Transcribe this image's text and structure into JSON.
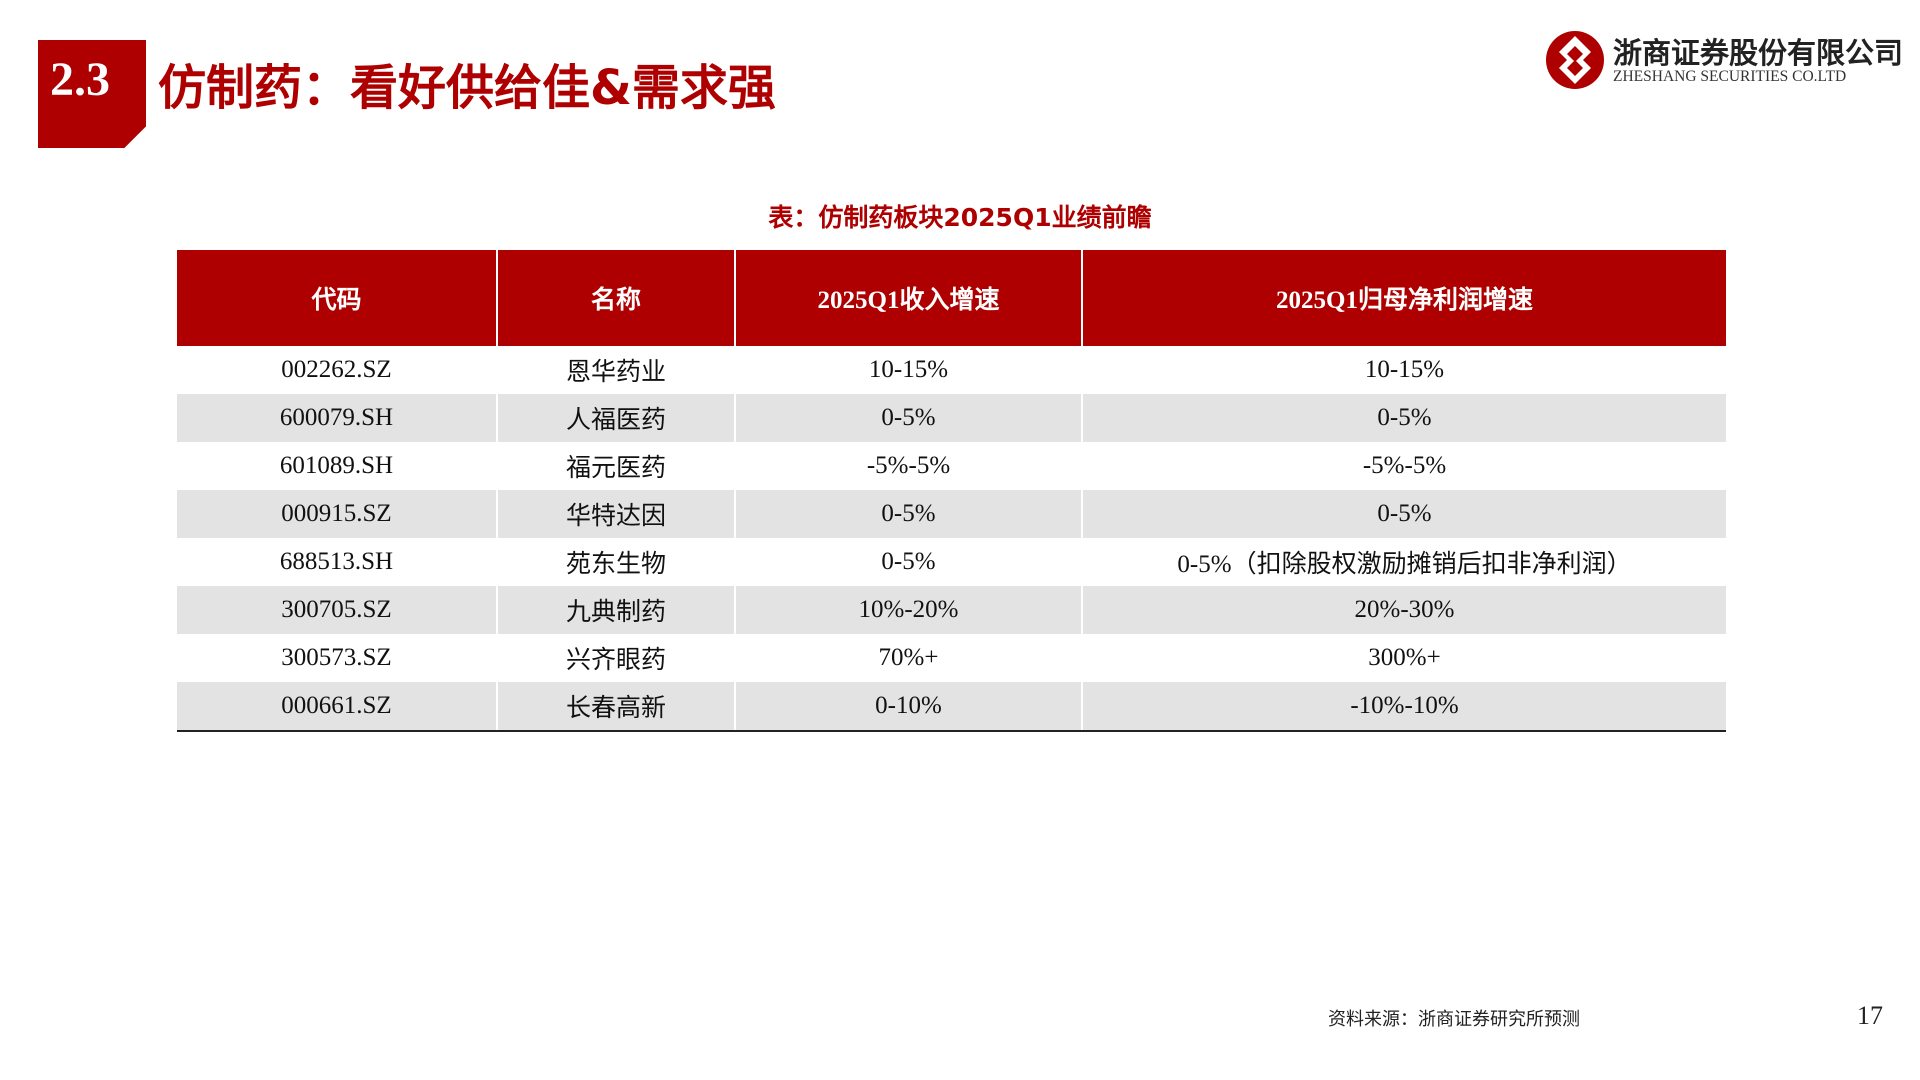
{
  "header": {
    "section_number": "2.3",
    "title": "仿制药：看好供给佳&需求强"
  },
  "logo": {
    "cn": "浙商证券股份有限公司",
    "en": "ZHESHANG SECURITIES CO.LTD"
  },
  "colors": {
    "brand_red": "#ae0000",
    "stripe_gray": "#e3e3e3"
  },
  "table": {
    "caption": "表：仿制药板块2025Q1业绩前瞻",
    "columns": [
      "代码",
      "名称",
      "2025Q1收入增速",
      "2025Q1归母净利润增速"
    ],
    "rows": [
      [
        "002262.SZ",
        "恩华药业",
        "10-15%",
        "10-15%"
      ],
      [
        "600079.SH",
        "人福医药",
        "0-5%",
        "0-5%"
      ],
      [
        "601089.SH",
        "福元医药",
        "-5%-5%",
        "-5%-5%"
      ],
      [
        "000915.SZ",
        "华特达因",
        "0-5%",
        "0-5%"
      ],
      [
        "688513.SH",
        "苑东生物",
        "0-5%",
        "0-5%（扣除股权激励摊销后扣非净利润）"
      ],
      [
        "300705.SZ",
        "九典制药",
        "10%-20%",
        "20%-30%"
      ],
      [
        "300573.SZ",
        "兴齐眼药",
        "70%+",
        "300%+"
      ],
      [
        "000661.SZ",
        "长春高新",
        "0-10%",
        "-10%-10%"
      ]
    ]
  },
  "footer": {
    "source": "资料来源：浙商证券研究所预测",
    "page_number": "17"
  }
}
